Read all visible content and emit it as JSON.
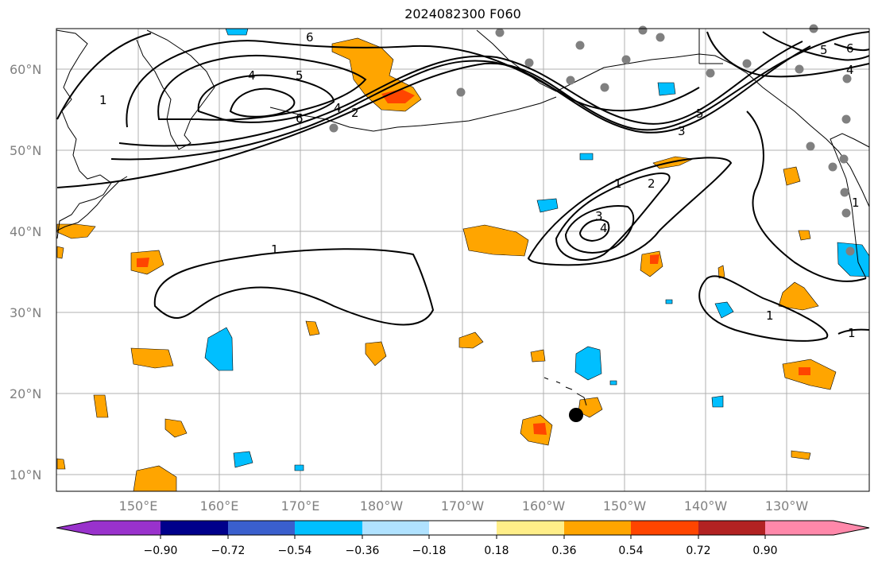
{
  "title": "2024082300 F060",
  "lat_labels": [
    "60°N",
    "50°N",
    "40°N",
    "30°N",
    "20°N",
    "10°N"
  ],
  "lon_labels": [
    "150°E",
    "160°E",
    "170°E",
    "180°W",
    "170°W",
    "160°W",
    "150°W",
    "140°W",
    "130°W"
  ],
  "colorbar": {
    "ticks": [
      "−0.90",
      "−0.72",
      "−0.54",
      "−0.36",
      "−0.18",
      "0.18",
      "0.36",
      "0.54",
      "0.72",
      "0.90"
    ],
    "colors": [
      "#9932cc",
      "#00008b",
      "#3a5fcd",
      "#00bfff",
      "#b0e2ff",
      "#ffffff",
      "#ffee88",
      "#ffa500",
      "#ff4500",
      "#b22222",
      "#ff88aa"
    ]
  },
  "contour_labels": [
    "1",
    "2",
    "3",
    "4",
    "5",
    "6"
  ],
  "colors": {
    "land_outline": "#000000",
    "grid": "#b0b0b0",
    "station": "#808080",
    "marker": "#000000"
  }
}
